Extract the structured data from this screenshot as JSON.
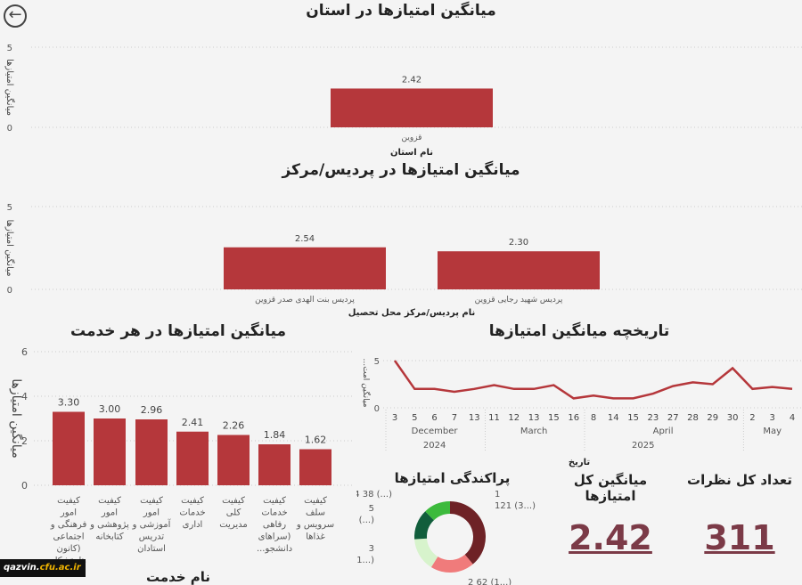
{
  "nav": {
    "back_icon": "arrow-left-circle-icon"
  },
  "watermark": {
    "host": "qazvin.",
    "domain": "cfu.ac.ir"
  },
  "chart_data": [
    {
      "id": "province",
      "type": "bar",
      "title": "میانگین امتیازها در استان",
      "xlabel": "نام استان",
      "ylabel": "میانگین امتیازها",
      "ylim": [
        0,
        5
      ],
      "yticks": [
        0,
        5
      ],
      "categories": [
        "قزوین"
      ],
      "values": [
        2.42
      ],
      "data_labels": [
        "2.42"
      ],
      "color": "#b5373b",
      "grid": true
    },
    {
      "id": "campus",
      "type": "bar",
      "title": "میانگین امتیازها در پردیس/مرکز",
      "xlabel": "نام پردیس/مرکز محل تحصیل",
      "ylabel": "میانگین امتیازها",
      "ylim": [
        0,
        5
      ],
      "yticks": [
        0,
        5
      ],
      "categories": [
        "پردیس بنت الهدی صدر قزوین",
        "پردیس شهید رجایی قزوین"
      ],
      "values": [
        2.54,
        2.3
      ],
      "data_labels": [
        "2.54",
        "2.30"
      ],
      "color": "#b5373b",
      "grid": true
    },
    {
      "id": "service",
      "type": "bar",
      "title": "میانگین امتیازها در هر خدمت",
      "xlabel": "نام خدمت",
      "ylabel": "میانگین امتیازها",
      "ylim": [
        0,
        6
      ],
      "yticks": [
        0,
        2,
        4,
        6
      ],
      "categories": [
        "کیفیت امور فرهنگی و اجتماعی (کانون ها، تشکل ها",
        "کیفیت امور پژوهشی و کتابخانه",
        "کیفیت امور آموزشی و تدریس استادان",
        "کیفیت خدمات اداری",
        "کیفیت کلی مدیریت",
        "کیفیت خدمات رفاهی (سراهای دانشجو...",
        "کیفیت سلف سرویس و غذاها"
      ],
      "values": [
        3.3,
        3.0,
        2.96,
        2.41,
        2.26,
        1.84,
        1.62
      ],
      "data_labels": [
        "3.30",
        "3.00",
        "2.96",
        "2.41",
        "2.26",
        "1.84",
        "1.62"
      ],
      "color": "#b5373b",
      "grid": true
    },
    {
      "id": "history",
      "type": "line",
      "title": "تاریخچه میانگین امتیازها",
      "xlabel": "تاریخ",
      "ylabel": "میانگین امت...",
      "ylim": [
        0,
        5
      ],
      "yticks": [
        0,
        5
      ],
      "x": [
        "3",
        "5",
        "6",
        "7",
        "13",
        "11",
        "12",
        "13",
        "15",
        "16",
        "8",
        "14",
        "15",
        "23",
        "27",
        "28",
        "29",
        "30",
        "2",
        "3",
        "4"
      ],
      "values": [
        5,
        2,
        2,
        1.7,
        2,
        2.4,
        2,
        2,
        2.4,
        1,
        1.3,
        1,
        1,
        1.5,
        2.3,
        2.7,
        2.5,
        4.2,
        2,
        2.2,
        2
      ],
      "months": [
        {
          "label": "December",
          "from": 0,
          "to": 4
        },
        {
          "label": "March",
          "from": 5,
          "to": 9
        },
        {
          "label": "April",
          "from": 10,
          "to": 17
        },
        {
          "label": "May",
          "from": 18,
          "to": 20
        }
      ],
      "years": [
        {
          "label": "2024",
          "from": 0,
          "to": 4
        },
        {
          "label": "2025",
          "from": 5,
          "to": 20
        }
      ],
      "color": "#b5373b",
      "grid": true
    },
    {
      "id": "distribution",
      "type": "pie",
      "title": "پراکندگی امتیازها",
      "slices": [
        {
          "name": "1",
          "value": 121,
          "label": "121 (3...)",
          "color": "#6e2226"
        },
        {
          "name": "2",
          "value": 62,
          "label": "2 62 (1...)",
          "color": "#f07b7b"
        },
        {
          "name": "3",
          "value": 47,
          "label": "47 (1...)",
          "color": "#d7f3cc"
        },
        {
          "name": "5",
          "value": 43,
          "label": "43 (...)",
          "color": "#115e3c"
        },
        {
          "name": "4",
          "value": 38,
          "label": "4 38 (...)",
          "color": "#3cba3c"
        }
      ]
    }
  ],
  "kpis": {
    "avg_label": "میانگین کل امتیازها",
    "avg_value": "2.42",
    "count_label": "تعداد کل نظرات",
    "count_value": "311",
    "color": "#7b3a47"
  }
}
